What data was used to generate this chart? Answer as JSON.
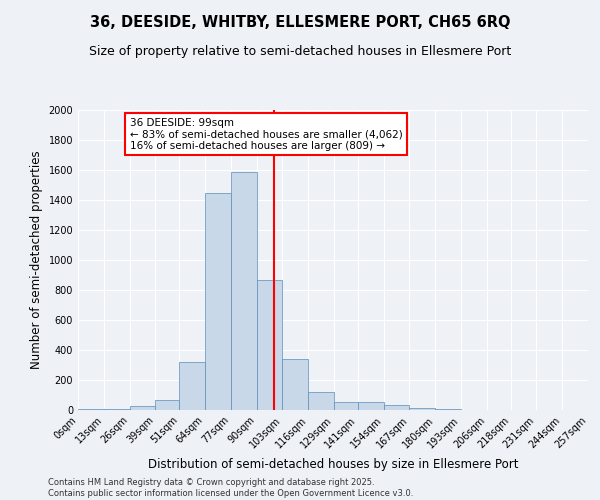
{
  "title": "36, DEESIDE, WHITBY, ELLESMERE PORT, CH65 6RQ",
  "subtitle": "Size of property relative to semi-detached houses in Ellesmere Port",
  "xlabel": "Distribution of semi-detached houses by size in Ellesmere Port",
  "ylabel": "Number of semi-detached properties",
  "bar_color": "#c8d8e8",
  "bar_edge_color": "#5b8db8",
  "background_color": "#eef2f7",
  "grid_color": "#ffffff",
  "property_size": 99,
  "annotation_title": "36 DEESIDE: 99sqm",
  "annotation_line1": "← 83% of semi-detached houses are smaller (4,062)",
  "annotation_line2": "16% of semi-detached houses are larger (809) →",
  "footnote1": "Contains HM Land Registry data © Crown copyright and database right 2025.",
  "footnote2": "Contains public sector information licensed under the Open Government Licence v3.0.",
  "bin_labels": [
    "0sqm",
    "13sqm",
    "26sqm",
    "39sqm",
    "51sqm",
    "64sqm",
    "77sqm",
    "90sqm",
    "103sqm",
    "116sqm",
    "129sqm",
    "141sqm",
    "154sqm",
    "167sqm",
    "180sqm",
    "193sqm",
    "206sqm",
    "218sqm",
    "231sqm",
    "244sqm",
    "257sqm"
  ],
  "bin_edges": [
    0,
    13,
    26,
    39,
    51,
    64,
    77,
    90,
    103,
    116,
    129,
    141,
    154,
    167,
    180,
    193,
    206,
    218,
    231,
    244,
    257
  ],
  "bar_heights": [
    10,
    5,
    30,
    65,
    320,
    1450,
    1590,
    870,
    340,
    120,
    55,
    55,
    35,
    15,
    5,
    2,
    1,
    0,
    0,
    0
  ],
  "ylim": [
    0,
    2000
  ],
  "yticks": [
    0,
    200,
    400,
    600,
    800,
    1000,
    1200,
    1400,
    1600,
    1800,
    2000
  ],
  "red_line_x": 99,
  "title_fontsize": 10.5,
  "subtitle_fontsize": 9,
  "tick_fontsize": 7,
  "ylabel_fontsize": 8.5,
  "xlabel_fontsize": 8.5,
  "annotation_fontsize": 7.5,
  "footnote_fontsize": 6
}
